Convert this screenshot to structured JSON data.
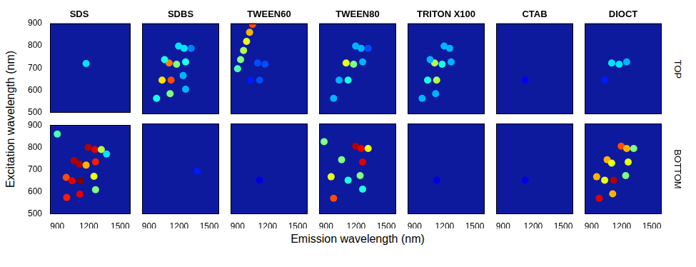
{
  "figure": {
    "xlabel": "Emission wavelength (nm)",
    "ylabel": "Excitation wavelength (nm)",
    "rows": [
      "TOP",
      "BOTTOM"
    ],
    "xlim": [
      830,
      1600
    ],
    "xticks": [
      900,
      1200,
      1500
    ],
    "ylim": [
      500,
      900
    ],
    "yticks": [
      500,
      600,
      700,
      800,
      900
    ]
  },
  "chart_data": [
    {
      "type": "scatter",
      "title": "SDS",
      "tick_labels": "y",
      "spots": [
        {
          "x": 1175,
          "y": 720,
          "intensity": 0.35
        }
      ]
    },
    {
      "type": "scatter",
      "title": "SDBS",
      "tick_labels": false,
      "spots": [
        {
          "x": 975,
          "y": 570,
          "intensity": 0.4
        },
        {
          "x": 1030,
          "y": 650,
          "intensity": 0.65
        },
        {
          "x": 1120,
          "y": 650,
          "intensity": 0.8
        },
        {
          "x": 1110,
          "y": 590,
          "intensity": 0.5
        },
        {
          "x": 1100,
          "y": 725,
          "intensity": 0.75
        },
        {
          "x": 1175,
          "y": 720,
          "intensity": 0.5
        },
        {
          "x": 1055,
          "y": 740,
          "intensity": 0.4
        },
        {
          "x": 1195,
          "y": 800,
          "intensity": 0.35
        },
        {
          "x": 1250,
          "y": 790,
          "intensity": 0.35
        },
        {
          "x": 1265,
          "y": 730,
          "intensity": 0.4
        },
        {
          "x": 1240,
          "y": 670,
          "intensity": 0.3
        },
        {
          "x": 1265,
          "y": 610,
          "intensity": 0.3
        },
        {
          "x": 1320,
          "y": 790,
          "intensity": 0.25
        }
      ]
    },
    {
      "type": "scatter",
      "title": "TWEEN60",
      "tick_labels": false,
      "spots": [
        {
          "x": 900,
          "y": 700,
          "intensity": 0.45
        },
        {
          "x": 930,
          "y": 740,
          "intensity": 0.5
        },
        {
          "x": 960,
          "y": 780,
          "intensity": 0.55
        },
        {
          "x": 990,
          "y": 820,
          "intensity": 0.6
        },
        {
          "x": 1020,
          "y": 860,
          "intensity": 0.7
        },
        {
          "x": 1050,
          "y": 895,
          "intensity": 0.8
        },
        {
          "x": 1100,
          "y": 725,
          "intensity": 0.2
        },
        {
          "x": 1175,
          "y": 720,
          "intensity": 0.2
        },
        {
          "x": 1120,
          "y": 650,
          "intensity": 0.2
        },
        {
          "x": 1030,
          "y": 650,
          "intensity": 0.15
        }
      ]
    },
    {
      "type": "scatter",
      "title": "TWEEN80",
      "tick_labels": false,
      "spots": [
        {
          "x": 1100,
          "y": 725,
          "intensity": 0.6
        },
        {
          "x": 1175,
          "y": 720,
          "intensity": 0.5
        },
        {
          "x": 1030,
          "y": 650,
          "intensity": 0.3
        },
        {
          "x": 1120,
          "y": 650,
          "intensity": 0.4
        },
        {
          "x": 975,
          "y": 570,
          "intensity": 0.3
        },
        {
          "x": 1195,
          "y": 800,
          "intensity": 0.3
        },
        {
          "x": 1250,
          "y": 790,
          "intensity": 0.3
        },
        {
          "x": 1265,
          "y": 730,
          "intensity": 0.3
        },
        {
          "x": 1320,
          "y": 790,
          "intensity": 0.2
        }
      ]
    },
    {
      "type": "scatter",
      "title": "TRITON X100",
      "tick_labels": false,
      "spots": [
        {
          "x": 975,
          "y": 570,
          "intensity": 0.3
        },
        {
          "x": 1030,
          "y": 650,
          "intensity": 0.4
        },
        {
          "x": 1110,
          "y": 590,
          "intensity": 0.3
        },
        {
          "x": 1120,
          "y": 650,
          "intensity": 0.55
        },
        {
          "x": 1100,
          "y": 725,
          "intensity": 0.55
        },
        {
          "x": 1175,
          "y": 720,
          "intensity": 0.4
        },
        {
          "x": 1055,
          "y": 740,
          "intensity": 0.3
        },
        {
          "x": 1195,
          "y": 800,
          "intensity": 0.3
        },
        {
          "x": 1250,
          "y": 790,
          "intensity": 0.3
        },
        {
          "x": 1265,
          "y": 730,
          "intensity": 0.3
        }
      ]
    },
    {
      "type": "scatter",
      "title": "CTAB",
      "tick_labels": false,
      "spots": [
        {
          "x": 1120,
          "y": 650,
          "intensity": 0.12
        }
      ]
    },
    {
      "type": "scatter",
      "title": "DIOCT",
      "tick_labels": false,
      "spots": [
        {
          "x": 1100,
          "y": 725,
          "intensity": 0.35
        },
        {
          "x": 1175,
          "y": 720,
          "intensity": 0.35
        },
        {
          "x": 1250,
          "y": 730,
          "intensity": 0.3
        },
        {
          "x": 1030,
          "y": 650,
          "intensity": 0.15
        }
      ]
    },
    {
      "type": "scatter",
      "tick_labels": true,
      "spots": [
        {
          "x": 985,
          "y": 665,
          "intensity": 0.8
        },
        {
          "x": 990,
          "y": 575,
          "intensity": 0.85
        },
        {
          "x": 1040,
          "y": 650,
          "intensity": 0.9
        },
        {
          "x": 1060,
          "y": 740,
          "intensity": 0.95
        },
        {
          "x": 1120,
          "y": 650,
          "intensity": 1.0
        },
        {
          "x": 1115,
          "y": 590,
          "intensity": 0.9
        },
        {
          "x": 1110,
          "y": 725,
          "intensity": 0.95
        },
        {
          "x": 1195,
          "y": 800,
          "intensity": 0.95
        },
        {
          "x": 1260,
          "y": 790,
          "intensity": 0.9
        },
        {
          "x": 1265,
          "y": 735,
          "intensity": 0.85
        },
        {
          "x": 1175,
          "y": 720,
          "intensity": 0.7
        },
        {
          "x": 1250,
          "y": 670,
          "intensity": 0.6
        },
        {
          "x": 1265,
          "y": 610,
          "intensity": 0.5
        },
        {
          "x": 1320,
          "y": 790,
          "intensity": 0.55
        },
        {
          "x": 1370,
          "y": 770,
          "intensity": 0.35
        },
        {
          "x": 900,
          "y": 860,
          "intensity": 0.45
        }
      ]
    },
    {
      "type": "scatter",
      "tick_labels": "x",
      "spots": [
        {
          "x": 1380,
          "y": 690,
          "intensity": 0.15
        }
      ]
    },
    {
      "type": "scatter",
      "tick_labels": "x",
      "spots": [
        {
          "x": 1120,
          "y": 650,
          "intensity": 0.1
        }
      ]
    },
    {
      "type": "scatter",
      "tick_labels": "x",
      "spots": [
        {
          "x": 975,
          "y": 570,
          "intensity": 0.8
        },
        {
          "x": 950,
          "y": 665,
          "intensity": 0.6
        },
        {
          "x": 1055,
          "y": 740,
          "intensity": 0.5
        },
        {
          "x": 1195,
          "y": 800,
          "intensity": 0.95
        },
        {
          "x": 1250,
          "y": 790,
          "intensity": 0.9
        },
        {
          "x": 1265,
          "y": 730,
          "intensity": 0.9
        },
        {
          "x": 1320,
          "y": 790,
          "intensity": 0.6
        },
        {
          "x": 1240,
          "y": 670,
          "intensity": 0.5
        },
        {
          "x": 1265,
          "y": 610,
          "intensity": 0.4
        },
        {
          "x": 880,
          "y": 820,
          "intensity": 0.5
        },
        {
          "x": 1120,
          "y": 650,
          "intensity": 0.4
        }
      ]
    },
    {
      "type": "scatter",
      "tick_labels": "x",
      "spots": [
        {
          "x": 1120,
          "y": 650,
          "intensity": 0.1
        }
      ]
    },
    {
      "type": "scatter",
      "tick_labels": "x",
      "spots": [
        {
          "x": 1120,
          "y": 650,
          "intensity": 0.1
        }
      ]
    },
    {
      "type": "scatter",
      "tick_labels": "x",
      "spots": [
        {
          "x": 975,
          "y": 570,
          "intensity": 0.9
        },
        {
          "x": 950,
          "y": 665,
          "intensity": 0.7
        },
        {
          "x": 1030,
          "y": 650,
          "intensity": 0.6
        },
        {
          "x": 1055,
          "y": 740,
          "intensity": 0.7
        },
        {
          "x": 1110,
          "y": 590,
          "intensity": 0.7
        },
        {
          "x": 1120,
          "y": 650,
          "intensity": 0.95
        },
        {
          "x": 1100,
          "y": 725,
          "intensity": 0.6
        },
        {
          "x": 1195,
          "y": 800,
          "intensity": 0.8
        },
        {
          "x": 1250,
          "y": 790,
          "intensity": 0.7
        },
        {
          "x": 1265,
          "y": 730,
          "intensity": 0.6
        },
        {
          "x": 1240,
          "y": 670,
          "intensity": 0.5
        },
        {
          "x": 1320,
          "y": 790,
          "intensity": 0.5
        }
      ]
    }
  ]
}
